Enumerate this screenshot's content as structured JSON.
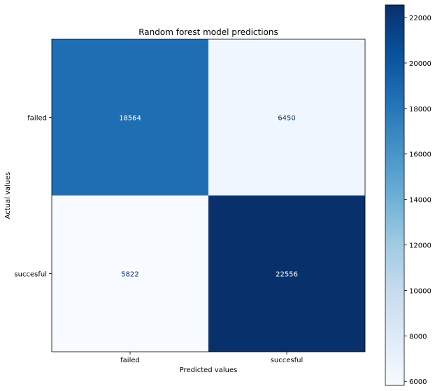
{
  "chart_data": {
    "type": "heatmap",
    "title": "Random forest model predictions",
    "xlabel": "Predicted values",
    "ylabel": "Actual values",
    "x_categories": [
      "failed",
      "succesful"
    ],
    "y_categories": [
      "failed",
      "succesful"
    ],
    "values": [
      [
        18564,
        6450
      ],
      [
        5822,
        22556
      ]
    ],
    "cell_labels": [
      [
        "18564",
        "6450"
      ],
      [
        "5822",
        "22556"
      ]
    ],
    "colormap": "Blues",
    "color_low": "#f7fbff",
    "color_high": "#08306b",
    "colorbar": {
      "range": [
        5822,
        22556
      ],
      "ticks": [
        6000,
        8000,
        10000,
        12000,
        14000,
        16000,
        18000,
        20000,
        22000
      ],
      "tick_labels": [
        "6000",
        "8000",
        "10000",
        "12000",
        "14000",
        "16000",
        "18000",
        "20000",
        "22000"
      ],
      "placement": "right"
    },
    "grid": false
  }
}
